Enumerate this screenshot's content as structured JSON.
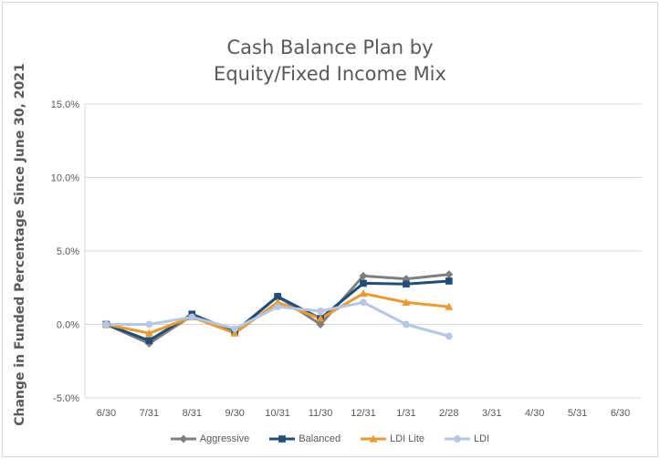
{
  "chart_data": {
    "type": "line",
    "title": [
      "Cash Balance Plan by",
      "Equity/Fixed Income Mix"
    ],
    "ylabel": "Change in Funded Percentage Since June 30, 2021",
    "xlabel": "",
    "categories": [
      "6/30",
      "7/31",
      "8/31",
      "9/30",
      "10/31",
      "11/30",
      "12/31",
      "1/31",
      "2/28",
      "3/31",
      "4/30",
      "5/31",
      "6/30"
    ],
    "ylim": [
      -5.0,
      15.0
    ],
    "yticks": [
      -5.0,
      0.0,
      5.0,
      10.0,
      15.0
    ],
    "ytick_labels": [
      "-5.0%",
      "0.0%",
      "5.0%",
      "10.0%",
      "15.0%"
    ],
    "grid": true,
    "legend_position": "bottom",
    "series": [
      {
        "name": "Aggressive",
        "color": "#7f7f7f",
        "marker": "diamond",
        "values": [
          0.0,
          -1.3,
          0.6,
          -0.5,
          1.9,
          0.0,
          3.3,
          3.1,
          3.4,
          null,
          null,
          null,
          null
        ]
      },
      {
        "name": "Balanced",
        "color": "#1f4e79",
        "marker": "square",
        "values": [
          0.0,
          -1.1,
          0.7,
          -0.5,
          1.9,
          0.4,
          2.8,
          2.75,
          2.95,
          null,
          null,
          null,
          null
        ]
      },
      {
        "name": "LDI Lite",
        "color": "#ed9a2c",
        "marker": "triangle",
        "values": [
          0.0,
          -0.6,
          0.5,
          -0.6,
          1.5,
          0.4,
          2.1,
          1.5,
          1.2,
          null,
          null,
          null,
          null
        ]
      },
      {
        "name": "LDI",
        "color": "#b4c7e7",
        "marker": "circle",
        "values": [
          0.0,
          0.0,
          0.5,
          -0.3,
          1.2,
          0.9,
          1.5,
          0.0,
          -0.8,
          null,
          null,
          null,
          null
        ]
      }
    ]
  }
}
